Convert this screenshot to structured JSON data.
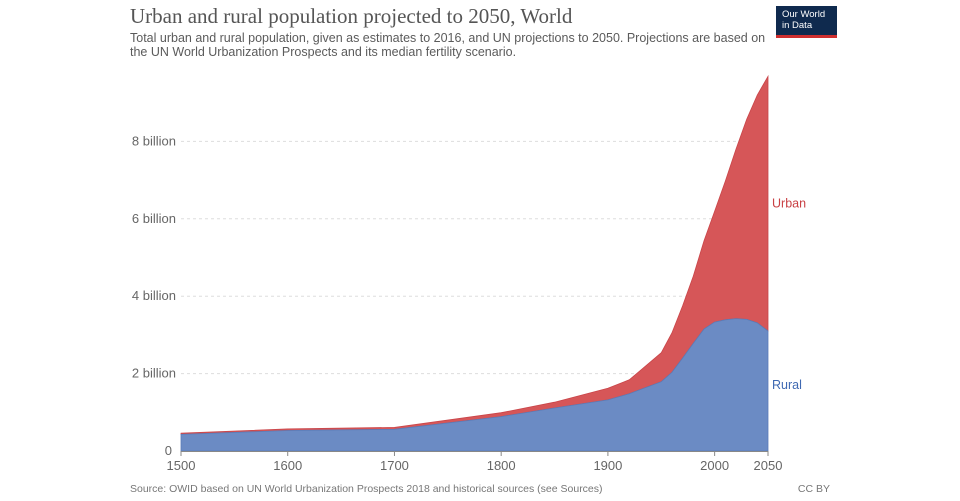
{
  "header": {
    "title": "Urban and rural population projected to 2050, World",
    "subtitle": "Total urban and rural population, given as estimates to 2016, and UN projections to 2050. Projections are based on the UN World Urbanization Prospects and its median fertility scenario.",
    "logo_line1": "Our World",
    "logo_line2": "in Data"
  },
  "footer": {
    "source": "Source: OWID based on UN World Urbanization Prospects 2018 and historical sources (see Sources)",
    "license": "CC BY"
  },
  "colors": {
    "urban": "#d65658",
    "rural": "#6b8bc4",
    "urban_label": "#c94044",
    "rural_label": "#3f69b2",
    "grid": "#dddddd",
    "axis_text": "#666666"
  },
  "chart_data": {
    "type": "area",
    "stacked": true,
    "title": "Urban and rural population projected to 2050, World",
    "xlim": [
      1500,
      2050
    ],
    "ylim": [
      0,
      10000000000
    ],
    "x_ticks": [
      1500,
      1600,
      1700,
      1800,
      1900,
      2000,
      2050
    ],
    "y_ticks": [
      {
        "value": 0,
        "label": "0"
      },
      {
        "value": 2000000000,
        "label": "2 billion"
      },
      {
        "value": 4000000000,
        "label": "4 billion"
      },
      {
        "value": 6000000000,
        "label": "6 billion"
      },
      {
        "value": 8000000000,
        "label": "8 billion"
      }
    ],
    "grid": true,
    "legend": "inline-right",
    "x": [
      1500,
      1600,
      1700,
      1800,
      1850,
      1900,
      1920,
      1950,
      1960,
      1970,
      1980,
      1990,
      2000,
      2010,
      2020,
      2030,
      2040,
      2050
    ],
    "series": [
      {
        "name": "Rural",
        "values": [
          430000000,
          530000000,
          560000000,
          890000000,
          1110000000,
          1320000000,
          1480000000,
          1790000000,
          2030000000,
          2400000000,
          2780000000,
          3150000000,
          3330000000,
          3390000000,
          3420000000,
          3400000000,
          3310000000,
          3100000000
        ]
      },
      {
        "name": "Urban",
        "values": [
          30000000,
          40000000,
          50000000,
          100000000,
          150000000,
          300000000,
          360000000,
          750000000,
          1020000000,
          1350000000,
          1740000000,
          2280000000,
          2860000000,
          3580000000,
          4380000000,
          5170000000,
          5890000000,
          6580000000
        ]
      }
    ]
  }
}
